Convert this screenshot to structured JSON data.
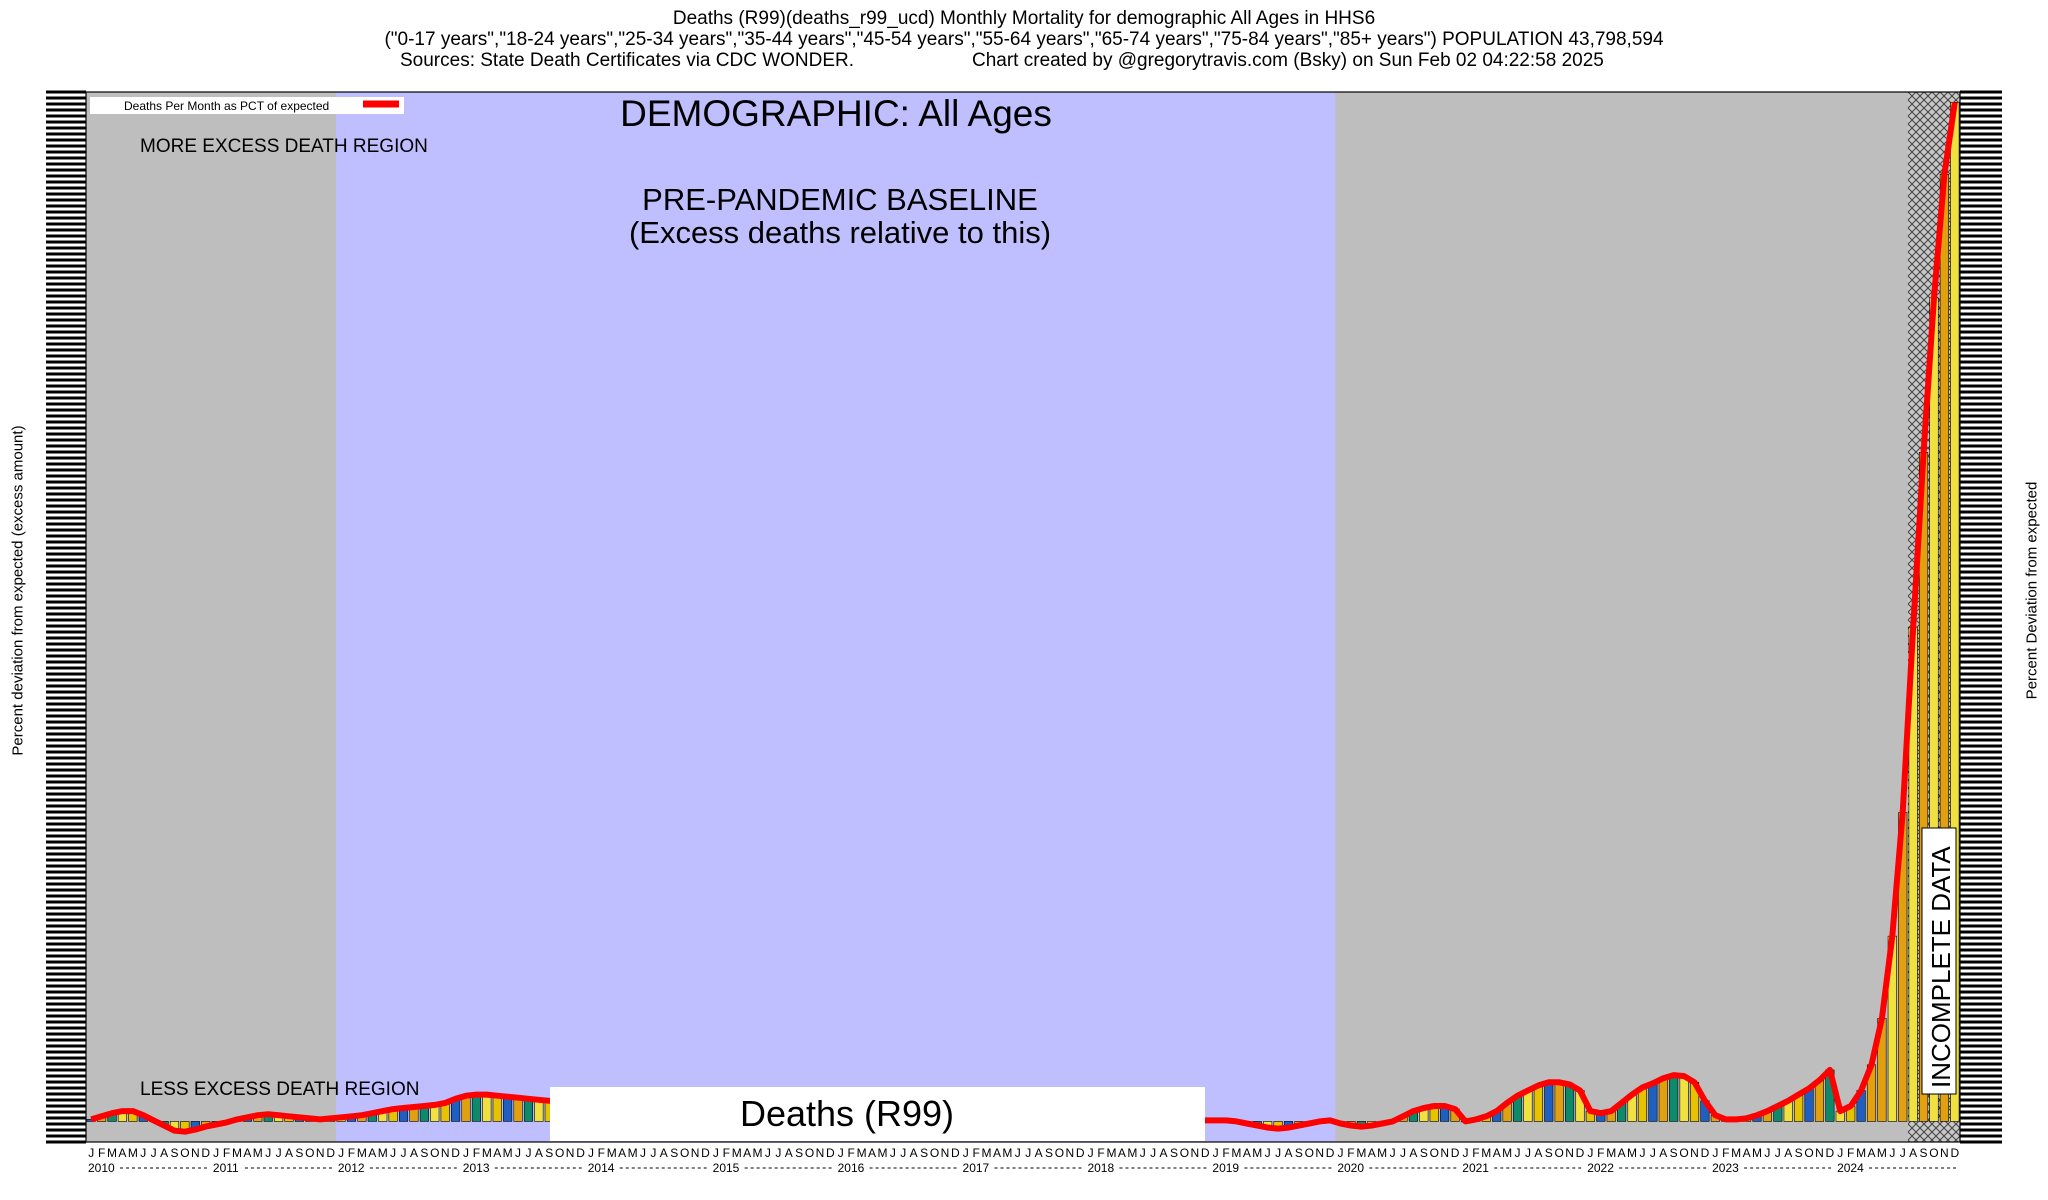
{
  "header": {
    "line1": "Deaths (R99)(deaths_r99_ucd) Monthly Mortality for demographic All Ages in HHS6",
    "line2": "(\"0-17 years\",\"18-24 years\",\"25-34 years\",\"35-44 years\",\"45-54 years\",\"55-64 years\",\"65-74 years\",\"75-84 years\",\"85+ years\") POPULATION 43,798,594",
    "line3_left": "Sources: State Death Certificates via CDC WONDER.",
    "line3_right": "Chart created by @gregorytravis.com (Bsky) on Sun Feb 02 04:22:58 2025"
  },
  "axes": {
    "left_label": "Percent deviation from expected (excess amount)",
    "right_label": "Percent Deviation from expected"
  },
  "chart_data": {
    "type": "bar",
    "legend": {
      "label": "Deaths Per Month as PCT of expected",
      "color": "#ff0000",
      "placement": "top-left"
    },
    "annotations": {
      "demographic": "DEMOGRAPHIC: All Ages",
      "baseline_line1": "PRE-PANDEMIC BASELINE",
      "baseline_line2": "(Excess deaths relative to this)",
      "more_region": "MORE EXCESS DEATH REGION",
      "less_region": "LESS EXCESS DEATH REGION",
      "incomplete": "INCOMPLETE DATA",
      "cause_label": "Deaths (R99)"
    },
    "x_start": "2010-01",
    "month_letters": [
      "J",
      "F",
      "M",
      "A",
      "M",
      "J",
      "J",
      "A",
      "S",
      "O",
      "N",
      "D"
    ],
    "years": [
      "2010",
      "2011",
      "2012",
      "2013",
      "2014",
      "2015",
      "2016",
      "2017",
      "2018",
      "2019",
      "2020",
      "2021",
      "2022",
      "2023",
      "2024"
    ],
    "baseline_period": [
      "2012-01",
      "2019-12"
    ],
    "incomplete_period": [
      "2024-08",
      "2024-12"
    ],
    "ylim": [
      -2,
      100
    ],
    "colors": {
      "gray_region": "#bebebe",
      "baseline_region": "#bfbfff",
      "line": "#ff0000"
    },
    "values": [
      0.2,
      0.5,
      0.8,
      1.0,
      1.0,
      0.6,
      0.1,
      -0.4,
      -0.9,
      -1.0,
      -0.8,
      -0.5,
      -0.3,
      -0.1,
      0.2,
      0.4,
      0.6,
      0.7,
      0.6,
      0.5,
      0.4,
      0.3,
      0.2,
      0.3,
      0.4,
      0.5,
      0.6,
      0.8,
      1.0,
      1.2,
      1.3,
      1.4,
      1.5,
      1.6,
      1.8,
      2.2,
      2.5,
      2.6,
      2.6,
      2.5,
      2.4,
      2.3,
      2.2,
      2.1,
      2.0,
      2.0,
      1.9,
      1.8,
      1.7,
      1.6,
      1.5,
      1.5,
      1.5,
      1.5,
      1.5,
      1.4,
      1.4,
      1.3,
      1.3,
      1.2,
      1.1,
      1.0,
      0.9,
      0.9,
      0.8,
      0.8,
      0.7,
      0.7,
      0.7,
      0.6,
      0.6,
      0.6,
      0.5,
      0.5,
      0.5,
      0.4,
      0.4,
      0.4,
      0.4,
      0.3,
      0.3,
      0.3,
      0.3,
      0.3,
      0.2,
      0.2,
      0.2,
      0.2,
      0.2,
      0.2,
      0.2,
      0.2,
      0.2,
      0.2,
      0.3,
      0.3,
      0.3,
      0.3,
      0.3,
      0.2,
      0.2,
      0.1,
      0.1,
      0.1,
      0.1,
      0.1,
      0.1,
      0.1,
      0.1,
      0.1,
      0.0,
      -0.2,
      -0.4,
      -0.6,
      -0.7,
      -0.6,
      -0.4,
      -0.2,
      0.0,
      0.1,
      -0.2,
      -0.4,
      -0.5,
      -0.4,
      -0.2,
      0.0,
      0.5,
      1.0,
      1.3,
      1.5,
      1.5,
      1.2,
      0.0,
      0.2,
      0.5,
      1.0,
      1.8,
      2.5,
      3.0,
      3.5,
      3.8,
      3.8,
      3.6,
      3.0,
      1.0,
      0.8,
      1.0,
      1.8,
      2.6,
      3.3,
      3.7,
      4.2,
      4.5,
      4.4,
      3.8,
      2.0,
      0.6,
      0.2,
      0.2,
      0.3,
      0.6,
      1.0,
      1.5,
      2.0,
      2.6,
      3.2,
      4.0,
      5.0,
      1.0,
      1.5,
      3.0,
      5.5,
      10.0,
      18.0,
      30.0,
      48.0,
      65.0,
      80.0,
      92.0,
      99.0
    ]
  }
}
